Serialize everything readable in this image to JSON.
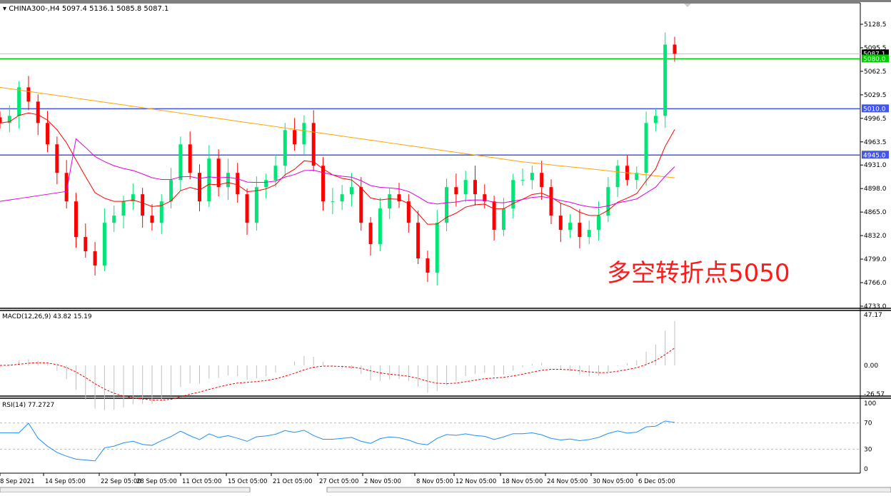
{
  "header": {
    "symbol_line": "CHINA300-,H4  5097.4 5136.1 5085.8 5087.1"
  },
  "annotation": "多空转折点5050",
  "colors": {
    "bull": "#00e676",
    "bear": "#ff0000",
    "ma_long": "#ffa500",
    "ma_mid": "#ff0000",
    "ma_short": "#e000e0",
    "support": "#4455ee",
    "resistance_green": "#00cc00",
    "macd_signal": "#ff0000",
    "macd_hist": "#c0c0c0",
    "rsi": "#1e90ff"
  },
  "chart_data": [
    {
      "type": "candlestick",
      "symbol": "CHINA300-",
      "timeframe": "H4",
      "ohlc_last": {
        "open": 5097.4,
        "high": 5136.1,
        "low": 5085.8,
        "close": 5087.1
      },
      "ylim": [
        4733.0,
        5145.0
      ],
      "y_ticks": [
        "5128.5",
        "5095.5",
        "5062.5",
        "5029.5",
        "4996.5",
        "4963.5",
        "4931.0",
        "4898.0",
        "4865.0",
        "4832.0",
        "4799.0",
        "4766.0",
        "4733.0"
      ],
      "x_ticks": [
        "8 Sep 2021",
        "14 Sep 05:00",
        "22 Sep 05:00",
        "28 Sep 05:00",
        "11 Oct 05:00",
        "15 Oct 05:00",
        "21 Oct 05:00",
        "27 Oct 05:00",
        "2 Nov 05:00",
        "8 Nov 05:00",
        "12 Nov 05:00",
        "18 Nov 05:00",
        "24 Nov 05:00",
        "30 Nov 05:00",
        "6 Dec 05:00"
      ],
      "current_price": "5087.1",
      "horizontal_levels": [
        {
          "value": 5080.0,
          "label": "5080.0",
          "color": "green"
        },
        {
          "value": 5010.0,
          "label": "5010.0",
          "color": "blue"
        },
        {
          "value": 4945.0,
          "label": "4945.0",
          "color": "blue"
        }
      ],
      "closes": [
        4990,
        5000,
        5040,
        5020,
        4990,
        4960,
        4920,
        4880,
        4830,
        4810,
        4790,
        4850,
        4860,
        4880,
        4890,
        4860,
        4850,
        4880,
        4910,
        4960,
        4920,
        4880,
        4940,
        4900,
        4920,
        4890,
        4850,
        4900,
        4910,
        4930,
        4980,
        4960,
        4990,
        4930,
        4880,
        4880,
        4890,
        4900,
        4850,
        4820,
        4870,
        4890,
        4880,
        4850,
        4800,
        4780,
        4850,
        4900,
        4890,
        4910,
        4890,
        4880,
        4840,
        4870,
        4910,
        4910,
        4920,
        4900,
        4860,
        4840,
        4850,
        4830,
        4840,
        4860,
        4900,
        4930,
        4910,
        4920,
        4990,
        5000,
        5100,
        5087.1
      ]
    },
    {
      "type": "line",
      "indicator": "MACD",
      "label": "MACD(12,26,9) 43.82 15.19",
      "ylim": [
        -26.57,
        47.17
      ],
      "y_ticks": [
        "47.17",
        "0.00",
        "-26.57"
      ]
    },
    {
      "type": "line",
      "indicator": "RSI",
      "label": "RSI(14) 77.2727",
      "ylim": [
        0,
        100
      ],
      "y_ticks": [
        "100",
        "70",
        "30",
        "0"
      ],
      "levels": [
        70,
        30
      ]
    }
  ]
}
